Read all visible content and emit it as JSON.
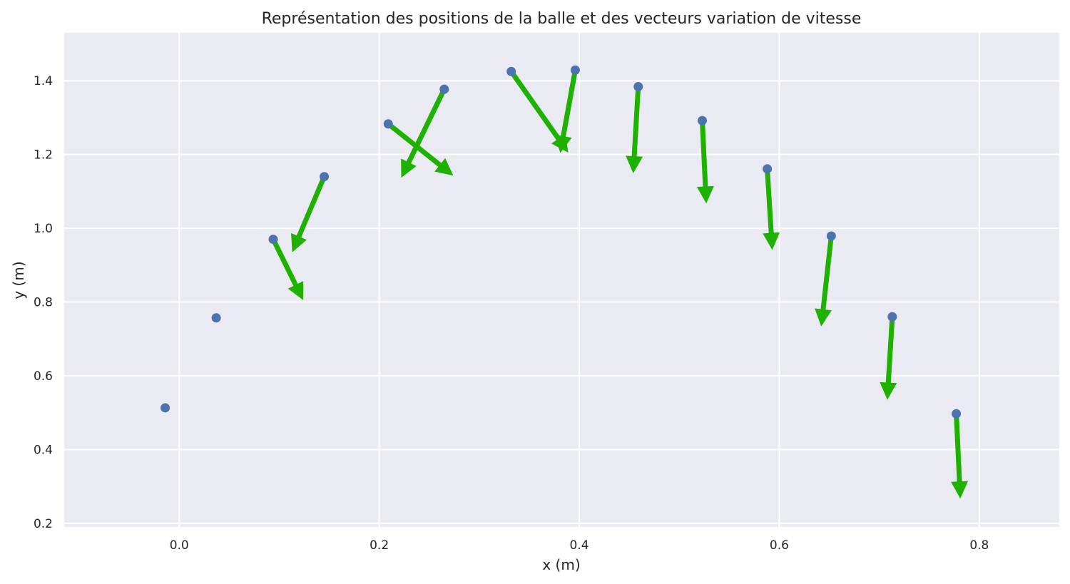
{
  "colors": {
    "plot_background": "#EAEAF2",
    "grid": "#FFFFFF",
    "point": "#4C72B0",
    "arrow": "#1FB100",
    "text": "#262626"
  },
  "chart_data": {
    "type": "scatter",
    "title": "Représentation des positions de la balle et des vecteurs variation de vitesse",
    "xlabel": "x (m)",
    "ylabel": "y (m)",
    "xlim": [
      -0.115,
      0.88
    ],
    "ylim": [
      0.19,
      1.53
    ],
    "xticks": [
      0.0,
      0.2,
      0.4,
      0.6,
      0.8
    ],
    "yticks": [
      0.2,
      0.4,
      0.6,
      0.8,
      1.0,
      1.2,
      1.4
    ],
    "x_tick_labels": [
      "0.0",
      "0.2",
      "0.4",
      "0.6",
      "0.8"
    ],
    "y_tick_labels": [
      "0.2",
      "0.4",
      "0.6",
      "0.8",
      "1.0",
      "1.2",
      "1.4"
    ],
    "grid": true,
    "points": [
      {
        "x": -0.014,
        "y": 0.513
      },
      {
        "x": 0.037,
        "y": 0.757
      },
      {
        "x": 0.094,
        "y": 0.97
      },
      {
        "x": 0.145,
        "y": 1.14
      },
      {
        "x": 0.209,
        "y": 1.283
      },
      {
        "x": 0.265,
        "y": 1.377
      },
      {
        "x": 0.332,
        "y": 1.425
      },
      {
        "x": 0.396,
        "y": 1.429
      },
      {
        "x": 0.459,
        "y": 1.384
      },
      {
        "x": 0.523,
        "y": 1.292
      },
      {
        "x": 0.588,
        "y": 1.161
      },
      {
        "x": 0.652,
        "y": 0.979
      },
      {
        "x": 0.713,
        "y": 0.76
      },
      {
        "x": 0.777,
        "y": 0.497
      }
    ],
    "vectors": [
      {
        "x": 0.094,
        "y": 0.97,
        "dx": 0.03,
        "dy": -0.165
      },
      {
        "x": 0.145,
        "y": 1.14,
        "dx": -0.032,
        "dy": -0.205
      },
      {
        "x": 0.209,
        "y": 1.283,
        "dx": 0.065,
        "dy": -0.14
      },
      {
        "x": 0.265,
        "y": 1.377,
        "dx": -0.043,
        "dy": -0.24
      },
      {
        "x": 0.332,
        "y": 1.425,
        "dx": 0.057,
        "dy": -0.22
      },
      {
        "x": 0.396,
        "y": 1.429,
        "dx": -0.015,
        "dy": -0.225
      },
      {
        "x": 0.459,
        "y": 1.384,
        "dx": -0.005,
        "dy": -0.235
      },
      {
        "x": 0.523,
        "y": 1.292,
        "dx": 0.004,
        "dy": -0.225
      },
      {
        "x": 0.588,
        "y": 1.161,
        "dx": 0.005,
        "dy": -0.22
      },
      {
        "x": 0.652,
        "y": 0.979,
        "dx": -0.01,
        "dy": -0.245
      },
      {
        "x": 0.713,
        "y": 0.76,
        "dx": -0.005,
        "dy": -0.225
      },
      {
        "x": 0.777,
        "y": 0.497,
        "dx": 0.004,
        "dy": -0.23
      }
    ]
  }
}
